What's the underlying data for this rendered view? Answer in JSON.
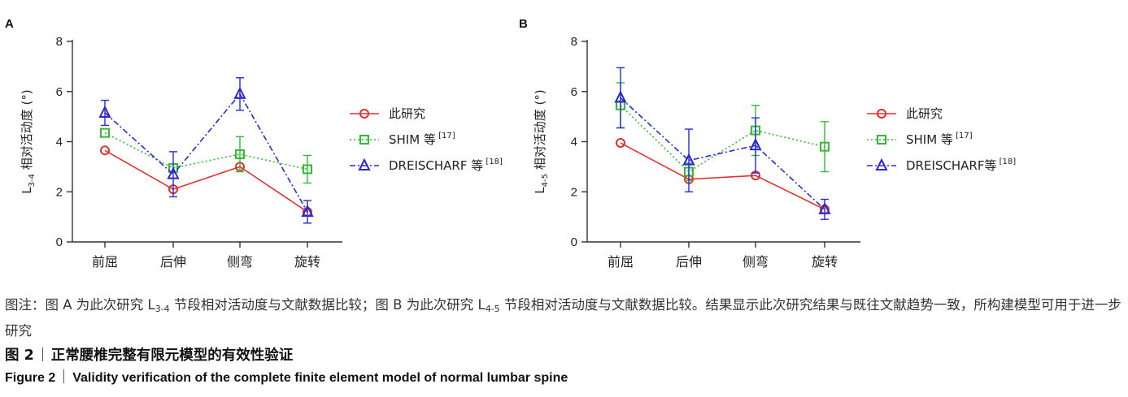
{
  "chart_data": [
    {
      "type": "line",
      "panel": "A",
      "ylabel_main": "L",
      "ylabel_sub": "3-4",
      "ylabel_rest": " 相对活动度 (°)",
      "categories": [
        "前屈",
        "后伸",
        "侧弯",
        "旋转"
      ],
      "ylim": [
        0,
        8
      ],
      "yticks": [
        "0",
        "2",
        "4",
        "6",
        "8"
      ],
      "legend_position": "right",
      "series": [
        {
          "name": "此研究",
          "ref": "",
          "color": "#e03030",
          "marker": "circle",
          "style": "solid",
          "values": [
            3.65,
            2.1,
            3.0,
            1.2
          ],
          "err": [
            0,
            0,
            0,
            0
          ]
        },
        {
          "name": "SHIM 等",
          "ref": "[17]",
          "color": "#33bb33",
          "marker": "square",
          "style": "dotted",
          "values": [
            4.35,
            2.95,
            3.5,
            2.9
          ],
          "err": [
            0,
            0,
            0.7,
            0.55
          ]
        },
        {
          "name": "DREISCHARF 等",
          "ref": "[18]",
          "color": "#2a2ad0",
          "marker": "triangle",
          "style": "dashdot",
          "values": [
            5.15,
            2.7,
            5.9,
            1.2
          ],
          "err": [
            0.5,
            0.9,
            0.65,
            0.45
          ]
        }
      ]
    },
    {
      "type": "line",
      "panel": "B",
      "ylabel_main": "L",
      "ylabel_sub": "4-5",
      "ylabel_rest": " 相对活动度 (°)",
      "categories": [
        "前屈",
        "后伸",
        "侧弯",
        "旋转"
      ],
      "ylim": [
        0,
        8
      ],
      "yticks": [
        "0",
        "2",
        "4",
        "6",
        "8"
      ],
      "legend_position": "right",
      "series": [
        {
          "name": "此研究",
          "ref": "",
          "color": "#e03030",
          "marker": "circle",
          "style": "solid",
          "values": [
            3.95,
            2.5,
            2.65,
            1.3
          ],
          "err": [
            0,
            0,
            0,
            0
          ]
        },
        {
          "name": "SHIM 等",
          "ref": "[17]",
          "color": "#33bb33",
          "marker": "square",
          "style": "dotted",
          "values": [
            5.45,
            2.8,
            4.45,
            3.8
          ],
          "err": [
            0.9,
            0.35,
            1.0,
            1.0
          ]
        },
        {
          "name": "DREISCHARF等",
          "ref": "[18]",
          "color": "#2a2ad0",
          "marker": "triangle",
          "style": "dashdot",
          "values": [
            5.75,
            3.25,
            3.85,
            1.3
          ],
          "err": [
            1.2,
            1.25,
            1.1,
            0.4
          ]
        }
      ]
    }
  ],
  "caption": {
    "part1": "图注：图 A 为此次研究 L",
    "sub1": "3-4",
    "part2": " 节段相对活动度与文献数据比较；图 B 为此次研究 L",
    "sub2": "4-5",
    "part3": " 节段相对活动度与文献数据比较。结果显示此次研究结果与既往文献趋势一致，所构建模型可用于进一步研究"
  },
  "figure_title_cn": {
    "label": "图 2",
    "text": "正常腰椎完整有限元模型的有效性验证"
  },
  "figure_title_en": {
    "label": "Figure 2",
    "text": "Validity verification of the complete finite element model of normal lumbar spine"
  }
}
